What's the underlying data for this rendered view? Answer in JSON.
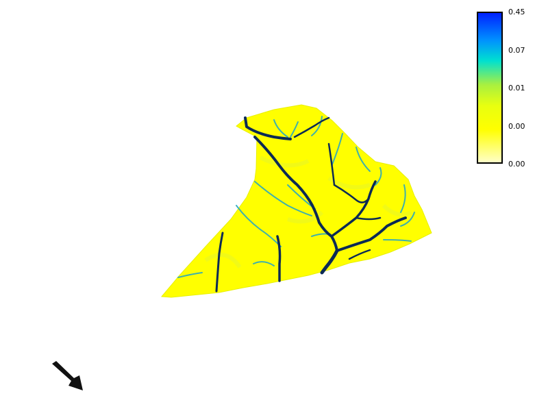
{
  "legend": {
    "labels": [
      "0.45",
      "0.07",
      "0.01",
      "0.00",
      "0.00"
    ],
    "colors": [
      "#0033ff",
      "#00a8ff",
      "#00e0c8",
      "#a8f040",
      "#ffff00",
      "#ffffa8"
    ]
  },
  "map": {
    "terrain_color": "#ffff00",
    "channel_color_deep": "#0b2a55",
    "channel_color_mid": "#1d6fb0",
    "channel_color_shallow": "#3fc4c8"
  },
  "icons": {
    "north_arrow": "arrow-icon"
  }
}
